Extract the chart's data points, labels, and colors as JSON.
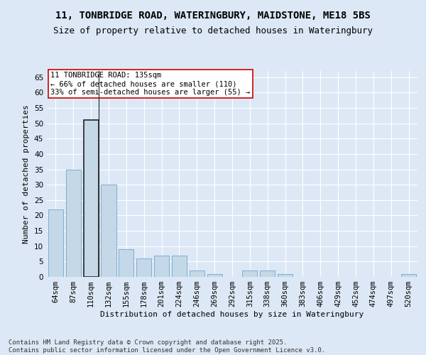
{
  "title": "11, TONBRIDGE ROAD, WATERINGBURY, MAIDSTONE, ME18 5BS",
  "subtitle": "Size of property relative to detached houses in Wateringbury",
  "xlabel": "Distribution of detached houses by size in Wateringbury",
  "ylabel": "Number of detached properties",
  "footer_line1": "Contains HM Land Registry data © Crown copyright and database right 2025.",
  "footer_line2": "Contains public sector information licensed under the Open Government Licence v3.0.",
  "categories": [
    "64sqm",
    "87sqm",
    "110sqm",
    "132sqm",
    "155sqm",
    "178sqm",
    "201sqm",
    "224sqm",
    "246sqm",
    "269sqm",
    "292sqm",
    "315sqm",
    "338sqm",
    "360sqm",
    "383sqm",
    "406sqm",
    "429sqm",
    "452sqm",
    "474sqm",
    "497sqm",
    "520sqm"
  ],
  "values": [
    22,
    35,
    51,
    30,
    9,
    6,
    7,
    7,
    2,
    1,
    0,
    2,
    2,
    1,
    0,
    0,
    0,
    0,
    0,
    0,
    1
  ],
  "bar_color": "#c5d8e8",
  "bar_edge_color": "#7bafd4",
  "highlight_bar_index": 2,
  "highlight_bar_edge_color": "#222222",
  "annotation_text": "11 TONBRIDGE ROAD: 135sqm\n← 66% of detached houses are smaller (110)\n33% of semi-detached houses are larger (55) →",
  "annotation_box_color": "#ffffff",
  "annotation_box_edge_color": "#cc0000",
  "ylim": [
    0,
    67
  ],
  "yticks": [
    0,
    5,
    10,
    15,
    20,
    25,
    30,
    35,
    40,
    45,
    50,
    55,
    60,
    65
  ],
  "bg_color": "#dce8f5",
  "plot_bg_color": "#dce8f5",
  "grid_color": "#ffffff",
  "title_fontsize": 10,
  "subtitle_fontsize": 9,
  "axis_label_fontsize": 8,
  "tick_fontsize": 7.5,
  "annotation_fontsize": 7.5,
  "footer_fontsize": 6.5
}
